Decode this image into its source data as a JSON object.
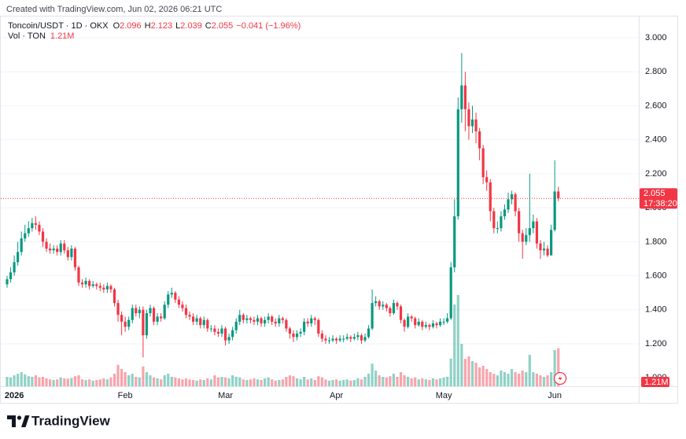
{
  "header": {
    "credit": "Created with TradingView.com, Jun 02, 2026 06:21 UTC",
    "brand": "TradingView"
  },
  "chart_data": {
    "type": "candlestick",
    "ohlc_keys": [
      "O",
      "H",
      "L",
      "C"
    ],
    "change": "−0.041 (−1.96%)",
    "countdown": "17:38:20",
    "categories": [
      null,
      null,
      "2026",
      null,
      null,
      null,
      null,
      null,
      null,
      null,
      null,
      null,
      null,
      null,
      null,
      null,
      null,
      null,
      null,
      null,
      null,
      null,
      null,
      null,
      null,
      null,
      null,
      null,
      null,
      null,
      null,
      null,
      null,
      "Feb",
      null,
      null,
      null,
      null,
      null,
      null,
      null,
      null,
      null,
      null,
      null,
      null,
      null,
      null,
      null,
      null,
      null,
      null,
      null,
      null,
      null,
      null,
      null,
      null,
      null,
      null,
      null,
      "Mar",
      null,
      null,
      null,
      null,
      null,
      null,
      null,
      null,
      null,
      null,
      null,
      null,
      null,
      null,
      null,
      null,
      null,
      null,
      null,
      null,
      null,
      null,
      null,
      null,
      null,
      null,
      null,
      null,
      null,
      null,
      "Apr",
      null,
      null,
      null,
      null,
      null,
      null,
      null,
      null,
      null,
      null,
      null,
      null,
      null,
      null,
      null,
      null,
      null,
      null,
      null,
      null,
      null,
      null,
      null,
      null,
      null,
      null,
      null,
      null,
      null,
      "May",
      null,
      null,
      null,
      null,
      null,
      null,
      null,
      null,
      null,
      null,
      null,
      null,
      null,
      null,
      null,
      null,
      null,
      null,
      null,
      null,
      null,
      null,
      null,
      null,
      null,
      null,
      null,
      null,
      null,
      null,
      "Jun",
      null
    ],
    "series": [
      {
        "name": "Toncoin/USDT · 1D · OKX",
        "open": [
          1.55,
          1.58,
          1.62,
          1.68,
          1.74,
          1.82,
          1.85,
          1.88,
          1.91,
          1.9,
          1.86,
          1.8,
          1.76,
          1.75,
          1.76,
          1.74,
          1.79,
          1.75,
          1.71,
          1.76,
          1.65,
          1.56,
          1.55,
          1.57,
          1.54,
          1.55,
          1.54,
          1.53,
          1.52,
          1.54,
          1.52,
          1.44,
          1.37,
          1.33,
          1.3,
          1.34,
          1.41,
          1.38,
          1.4,
          1.25,
          1.38,
          1.41,
          1.33,
          1.36,
          1.35,
          1.43,
          1.49,
          1.5,
          1.46,
          1.43,
          1.41,
          1.37,
          1.36,
          1.33,
          1.35,
          1.31,
          1.34,
          1.29,
          1.29,
          1.27,
          1.26,
          1.29,
          1.22,
          1.24,
          1.28,
          1.33,
          1.37,
          1.34,
          1.35,
          1.34,
          1.33,
          1.35,
          1.32,
          1.34,
          1.36,
          1.33,
          1.32,
          1.35,
          1.34,
          1.29,
          1.26,
          1.24,
          1.26,
          1.27,
          1.33,
          1.32,
          1.35,
          1.34,
          1.26,
          1.23,
          1.22,
          1.22,
          1.23,
          1.22,
          1.23,
          1.23,
          1.24,
          1.23,
          1.24,
          1.25,
          1.22,
          1.24,
          1.29,
          1.44,
          1.45,
          1.42,
          1.43,
          1.41,
          1.38,
          1.44,
          1.42,
          1.34,
          1.3,
          1.36,
          1.35,
          1.31,
          1.33,
          1.3,
          1.31,
          1.3,
          1.32,
          1.31,
          1.33,
          1.33,
          1.35,
          1.65,
          1.95,
          2.58,
          2.72,
          2.58,
          2.48,
          2.52,
          2.45,
          2.35,
          2.18,
          2.15,
          1.98,
          1.88,
          1.88,
          1.95,
          1.99,
          2.05,
          2.08,
          1.98,
          1.85,
          1.8,
          1.84,
          1.88,
          1.92,
          1.79,
          1.75,
          1.76,
          1.72,
          1.87,
          2.096
        ],
        "high": [
          1.6,
          1.65,
          1.72,
          1.8,
          1.86,
          1.9,
          1.92,
          1.94,
          1.95,
          1.92,
          1.88,
          1.82,
          1.79,
          1.78,
          1.78,
          1.81,
          1.81,
          1.77,
          1.78,
          1.77,
          1.66,
          1.58,
          1.59,
          1.58,
          1.57,
          1.56,
          1.56,
          1.55,
          1.56,
          1.55,
          1.53,
          1.46,
          1.39,
          1.36,
          1.36,
          1.43,
          1.43,
          1.42,
          1.42,
          1.4,
          1.43,
          1.42,
          1.38,
          1.38,
          1.45,
          1.51,
          1.53,
          1.51,
          1.48,
          1.45,
          1.43,
          1.39,
          1.38,
          1.37,
          1.36,
          1.36,
          1.35,
          1.31,
          1.31,
          1.29,
          1.31,
          1.3,
          1.26,
          1.3,
          1.35,
          1.4,
          1.38,
          1.37,
          1.36,
          1.36,
          1.37,
          1.36,
          1.36,
          1.38,
          1.37,
          1.35,
          1.37,
          1.36,
          1.35,
          1.3,
          1.28,
          1.28,
          1.29,
          1.35,
          1.35,
          1.37,
          1.36,
          1.35,
          1.28,
          1.25,
          1.24,
          1.25,
          1.24,
          1.25,
          1.25,
          1.26,
          1.25,
          1.26,
          1.27,
          1.26,
          1.26,
          1.31,
          1.52,
          1.48,
          1.46,
          1.45,
          1.44,
          1.42,
          1.46,
          1.45,
          1.43,
          1.35,
          1.38,
          1.37,
          1.36,
          1.35,
          1.34,
          1.33,
          1.32,
          1.34,
          1.33,
          1.35,
          1.35,
          1.38,
          1.68,
          2.05,
          2.65,
          2.91,
          2.8,
          2.62,
          2.6,
          2.56,
          2.47,
          2.37,
          2.22,
          2.17,
          2.0,
          1.92,
          1.98,
          2.02,
          2.09,
          2.1,
          2.09,
          2.0,
          1.87,
          1.88,
          2.2,
          1.96,
          1.94,
          1.81,
          1.8,
          1.78,
          1.9,
          2.28,
          2.123
        ],
        "low": [
          1.53,
          1.56,
          1.6,
          1.66,
          1.72,
          1.8,
          1.83,
          1.86,
          1.87,
          1.84,
          1.77,
          1.74,
          1.73,
          1.73,
          1.72,
          1.72,
          1.73,
          1.69,
          1.69,
          1.63,
          1.54,
          1.53,
          1.53,
          1.52,
          1.53,
          1.52,
          1.51,
          1.5,
          1.5,
          1.5,
          1.42,
          1.33,
          1.25,
          1.27,
          1.28,
          1.32,
          1.36,
          1.35,
          1.12,
          1.23,
          1.36,
          1.31,
          1.31,
          1.33,
          1.34,
          1.41,
          1.47,
          1.44,
          1.41,
          1.39,
          1.35,
          1.34,
          1.31,
          1.31,
          1.29,
          1.29,
          1.27,
          1.27,
          1.25,
          1.24,
          1.24,
          1.19,
          1.2,
          1.22,
          1.26,
          1.31,
          1.32,
          1.32,
          1.32,
          1.31,
          1.31,
          1.3,
          1.3,
          1.32,
          1.31,
          1.3,
          1.3,
          1.32,
          1.27,
          1.23,
          1.21,
          1.22,
          1.24,
          1.25,
          1.3,
          1.3,
          1.31,
          1.24,
          1.21,
          1.2,
          1.2,
          1.21,
          1.2,
          1.21,
          1.21,
          1.22,
          1.21,
          1.22,
          1.22,
          1.2,
          1.21,
          1.23,
          1.28,
          1.42,
          1.4,
          1.4,
          1.39,
          1.36,
          1.37,
          1.4,
          1.32,
          1.27,
          1.29,
          1.33,
          1.29,
          1.3,
          1.28,
          1.29,
          1.28,
          1.29,
          1.29,
          1.3,
          1.31,
          1.32,
          1.34,
          1.62,
          1.93,
          2.5,
          2.45,
          2.4,
          2.44,
          2.38,
          2.28,
          2.14,
          2.1,
          1.92,
          1.85,
          1.85,
          1.86,
          1.93,
          1.97,
          2.02,
          1.95,
          1.8,
          1.7,
          1.78,
          1.8,
          1.85,
          1.76,
          1.7,
          1.72,
          1.71,
          1.72,
          1.86,
          2.039
        ],
        "close": [
          1.58,
          1.62,
          1.68,
          1.74,
          1.82,
          1.85,
          1.88,
          1.91,
          1.9,
          1.86,
          1.8,
          1.76,
          1.75,
          1.76,
          1.74,
          1.79,
          1.75,
          1.71,
          1.76,
          1.65,
          1.56,
          1.55,
          1.57,
          1.54,
          1.55,
          1.54,
          1.53,
          1.52,
          1.54,
          1.52,
          1.44,
          1.37,
          1.33,
          1.3,
          1.34,
          1.41,
          1.38,
          1.4,
          1.25,
          1.38,
          1.41,
          1.33,
          1.36,
          1.35,
          1.43,
          1.49,
          1.5,
          1.46,
          1.43,
          1.41,
          1.37,
          1.36,
          1.33,
          1.35,
          1.31,
          1.34,
          1.29,
          1.29,
          1.27,
          1.26,
          1.29,
          1.22,
          1.24,
          1.28,
          1.33,
          1.37,
          1.34,
          1.35,
          1.34,
          1.33,
          1.35,
          1.32,
          1.34,
          1.36,
          1.33,
          1.32,
          1.35,
          1.34,
          1.29,
          1.26,
          1.24,
          1.26,
          1.27,
          1.33,
          1.32,
          1.35,
          1.34,
          1.26,
          1.23,
          1.22,
          1.22,
          1.23,
          1.22,
          1.23,
          1.23,
          1.24,
          1.23,
          1.24,
          1.25,
          1.22,
          1.24,
          1.29,
          1.44,
          1.45,
          1.42,
          1.43,
          1.41,
          1.38,
          1.44,
          1.42,
          1.34,
          1.3,
          1.36,
          1.35,
          1.31,
          1.33,
          1.3,
          1.31,
          1.3,
          1.32,
          1.31,
          1.33,
          1.33,
          1.35,
          1.65,
          1.95,
          2.58,
          2.72,
          2.58,
          2.48,
          2.52,
          2.45,
          2.35,
          2.18,
          2.15,
          1.98,
          1.88,
          1.88,
          1.95,
          1.99,
          2.05,
          2.08,
          1.98,
          1.85,
          1.8,
          1.84,
          1.88,
          1.92,
          1.79,
          1.75,
          1.76,
          1.72,
          1.87,
          2.096,
          2.055
        ]
      }
    ],
    "volume": {
      "name": "Vol · TON",
      "last_label": "1.21M",
      "values": [
        0.3,
        0.28,
        0.35,
        0.4,
        0.45,
        0.38,
        0.32,
        0.3,
        0.35,
        0.28,
        0.3,
        0.25,
        0.22,
        0.2,
        0.22,
        0.28,
        0.25,
        0.24,
        0.26,
        0.32,
        0.35,
        0.22,
        0.2,
        0.22,
        0.18,
        0.2,
        0.22,
        0.25,
        0.22,
        0.28,
        0.4,
        0.68,
        0.55,
        0.45,
        0.35,
        0.4,
        0.3,
        0.28,
        0.63,
        0.45,
        0.35,
        0.28,
        0.25,
        0.22,
        0.35,
        0.4,
        0.3,
        0.28,
        0.25,
        0.22,
        0.25,
        0.22,
        0.2,
        0.18,
        0.22,
        0.2,
        0.25,
        0.22,
        0.35,
        0.28,
        0.3,
        0.28,
        0.25,
        0.35,
        0.3,
        0.28,
        0.22,
        0.2,
        0.22,
        0.25,
        0.22,
        0.2,
        0.25,
        0.28,
        0.22,
        0.18,
        0.2,
        0.22,
        0.3,
        0.35,
        0.32,
        0.25,
        0.22,
        0.3,
        0.22,
        0.25,
        0.2,
        0.32,
        0.28,
        0.22,
        0.18,
        0.2,
        0.22,
        0.18,
        0.2,
        0.22,
        0.18,
        0.2,
        0.25,
        0.22,
        0.3,
        0.4,
        0.72,
        0.5,
        0.35,
        0.3,
        0.28,
        0.32,
        0.4,
        0.3,
        0.45,
        0.35,
        0.3,
        0.25,
        0.28,
        0.22,
        0.25,
        0.22,
        0.2,
        0.25,
        0.22,
        0.25,
        0.28,
        0.3,
        0.88,
        2.6,
        2.9,
        1.35,
        0.87,
        0.95,
        0.8,
        0.75,
        0.6,
        0.65,
        0.55,
        0.45,
        0.4,
        0.35,
        0.5,
        0.45,
        0.4,
        0.55,
        0.45,
        0.4,
        0.5,
        0.45,
        1.0,
        0.45,
        0.4,
        0.35,
        0.3,
        0.35,
        0.45,
        1.15,
        1.21
      ]
    },
    "ylim": [
      0.95,
      3.13
    ],
    "yticks": [
      {
        "value": 1,
        "label": "1.000"
      },
      {
        "value": 1.2,
        "label": "1.200"
      },
      {
        "value": 1.4,
        "label": "1.400"
      },
      {
        "value": 1.6,
        "label": "1.600"
      },
      {
        "value": 1.8,
        "label": "1.800"
      },
      {
        "value": 2,
        "label": "2.000"
      },
      {
        "value": 2.2,
        "label": "2.200"
      },
      {
        "value": 2.4,
        "label": "2.400"
      },
      {
        "value": 2.6,
        "label": "2.600"
      },
      {
        "value": 2.8,
        "label": "2.800"
      },
      {
        "value": 3,
        "label": "3.000"
      }
    ],
    "grid": true,
    "colors": {
      "up": "#089981",
      "down": "#f23645"
    }
  }
}
